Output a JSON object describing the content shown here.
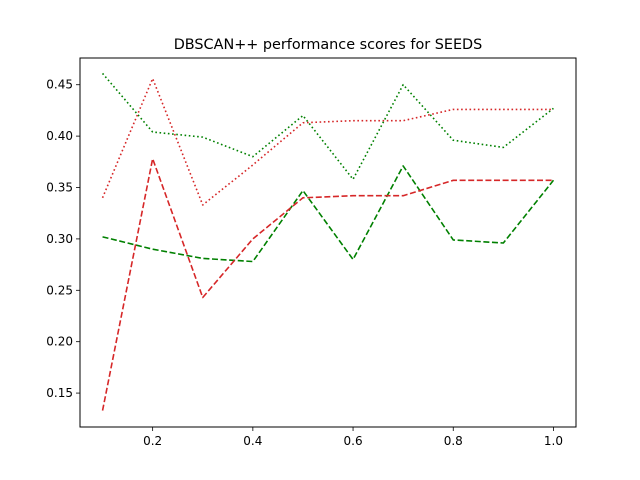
{
  "chart_data": {
    "type": "line",
    "title": "DBSCAN++ performance scores for SEEDS",
    "xlabel": "",
    "ylabel": "",
    "xlim": [
      0.055,
      1.045
    ],
    "ylim": [
      0.117,
      0.476
    ],
    "grid": false,
    "legend": "none",
    "x_ticks": [
      0.2,
      0.4,
      0.6,
      0.8,
      1.0
    ],
    "x_tick_labels": [
      "0.2",
      "0.4",
      "0.6",
      "0.8",
      "1.0"
    ],
    "y_ticks": [
      0.15,
      0.2,
      0.25,
      0.3,
      0.35,
      0.4,
      0.45
    ],
    "y_tick_labels": [
      "0.15",
      "0.20",
      "0.25",
      "0.30",
      "0.35",
      "0.40",
      "0.45"
    ],
    "x": [
      0.1,
      0.2,
      0.3,
      0.4,
      0.5,
      0.6,
      0.7,
      0.8,
      0.9,
      1.0
    ],
    "series": [
      {
        "color": "#008000",
        "dash": "dotted",
        "values": [
          0.461,
          0.404,
          0.399,
          0.38,
          0.42,
          0.358,
          0.45,
          0.396,
          0.389,
          0.427
        ]
      },
      {
        "color": "#d62728",
        "dash": "dotted",
        "values": [
          0.34,
          0.456,
          0.333,
          0.372,
          0.413,
          0.415,
          0.415,
          0.426,
          0.426,
          0.426
        ]
      },
      {
        "color": "#008000",
        "dash": "dashed",
        "values": [
          0.302,
          0.29,
          0.281,
          0.278,
          0.347,
          0.28,
          0.371,
          0.299,
          0.296,
          0.357
        ]
      },
      {
        "color": "#d62728",
        "dash": "dashed",
        "values": [
          0.133,
          0.378,
          0.243,
          0.3,
          0.34,
          0.342,
          0.342,
          0.357,
          0.357,
          0.357
        ]
      }
    ]
  }
}
